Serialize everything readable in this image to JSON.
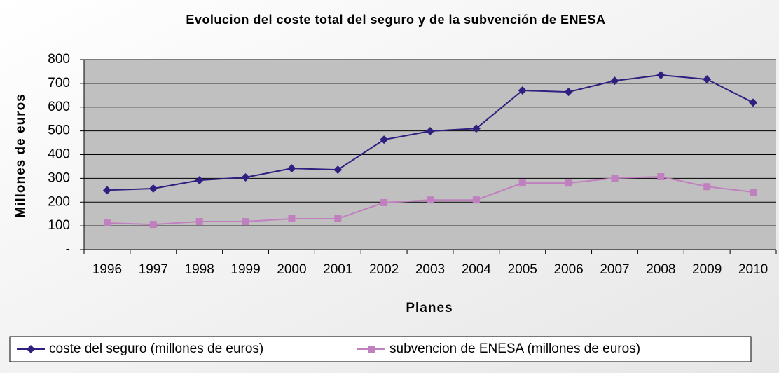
{
  "chart_data": {
    "type": "line",
    "title": "Evolucion del coste total del seguro y de la subvención de ENESA",
    "x_label": "Planes",
    "y_label": "Millones de euros",
    "categories": [
      "1996",
      "1997",
      "1998",
      "1999",
      "2000",
      "2001",
      "2002",
      "2003",
      "2004",
      "2005",
      "2006",
      "2007",
      "2008",
      "2009",
      "2010"
    ],
    "series": [
      {
        "name": "coste del seguro (millones de euros)",
        "color": "#2e2080",
        "marker": "diamond",
        "values": [
          250,
          257,
          292,
          304,
          342,
          336,
          463,
          499,
          510,
          670,
          664,
          711,
          735,
          717,
          619
        ]
      },
      {
        "name": "subvencion de ENESA (millones de euros)",
        "color": "#c080c0",
        "marker": "square",
        "values": [
          112,
          106,
          118,
          118,
          130,
          130,
          198,
          209,
          209,
          280,
          280,
          301,
          307,
          265,
          242
        ]
      }
    ],
    "ylim": [
      0,
      800
    ],
    "yticks": [
      {
        "value": 0,
        "label": "-"
      },
      100,
      200,
      300,
      400,
      500,
      600,
      700,
      800
    ],
    "grid": true,
    "legend": "bottom"
  }
}
